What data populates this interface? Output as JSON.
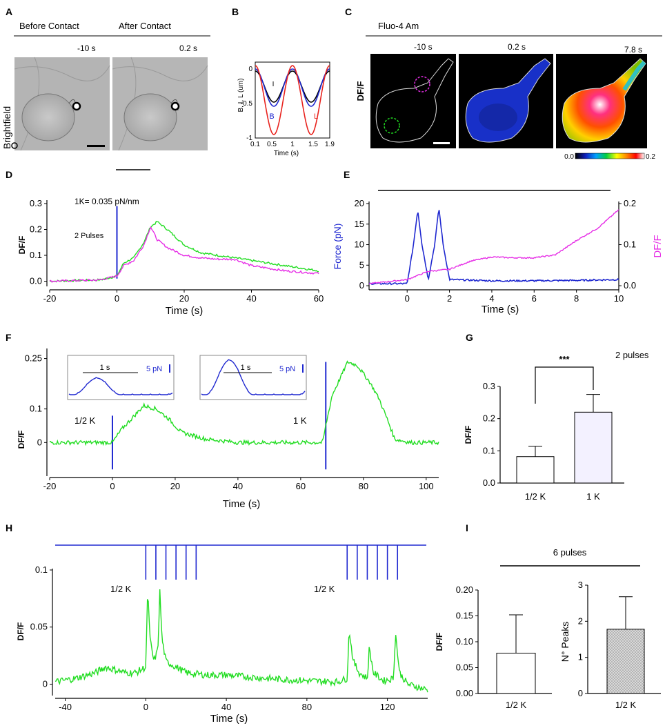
{
  "panels": {
    "A": {
      "label": "A",
      "header_before": "Before Contact",
      "header_after": "After Contact",
      "time_before": "-10 s",
      "time_after": "0.2 s",
      "row_label": "Brightfield"
    },
    "B": {
      "label": "B",
      "ylabel": "B, I, L (um)",
      "xlabel": "Time (s)"
    },
    "C": {
      "label": "C",
      "dye": "Fluo-4 Am",
      "row_label": "DF/F",
      "times": [
        "-10 s",
        "0.2 s",
        "7.8 s"
      ],
      "cbar_min": "0.0",
      "cbar_max": "0.2"
    },
    "D": {
      "label": "D",
      "annotation": "1K= 0.035 pN/nm",
      "pulses": "2 Pulses"
    },
    "E": {
      "label": "E"
    },
    "F": {
      "label": "F",
      "inset_scale_time": "1 s",
      "inset_scale_force": "5 pN",
      "label_half": "1/2 K",
      "label_one": "1 K"
    },
    "G": {
      "label": "G",
      "title": "2 pulses",
      "significance": "***"
    },
    "H": {
      "label": "H",
      "label_left": "1/2 K",
      "label_right": "1/2 K"
    },
    "I": {
      "label": "I",
      "title": "6 pulses"
    }
  },
  "chart_data": [
    {
      "id": "B",
      "type": "line",
      "xlabel": "Time (s)",
      "ylabel": "B, I, L (um)",
      "xlim": [
        0.1,
        1.9
      ],
      "ylim": [
        -1,
        0.1
      ],
      "xticks": [
        "0.1",
        "0.5",
        "1",
        "1.5",
        "1.9"
      ],
      "yticks": [
        "0",
        "-0.5",
        "-1"
      ],
      "series": [
        {
          "name": "I",
          "color": "#000000",
          "amplitude": 0.45,
          "offset": -0.03
        },
        {
          "name": "B",
          "color": "#1f28d0",
          "amplitude": 0.54,
          "offset": 0.0
        },
        {
          "name": "L",
          "color": "#e8231e",
          "amplitude": 1.0,
          "offset": 0.05
        }
      ]
    },
    {
      "id": "D",
      "type": "line",
      "xlabel": "Time (s)",
      "ylabel": "DF/F",
      "xlim": [
        -20,
        60
      ],
      "ylim": [
        -0.02,
        0.3
      ],
      "xticks": [
        "-20",
        "0",
        "20",
        "40",
        "60"
      ],
      "yticks": [
        "0.0",
        "0.1",
        "0.2",
        "0.3"
      ],
      "series": [
        {
          "name": "",
          "color": "#22dd22",
          "x": [
            -20,
            -5,
            0,
            2,
            5,
            8,
            10,
            12,
            15,
            20,
            25,
            30,
            35,
            40,
            50,
            60
          ],
          "y": [
            0.0,
            0.005,
            0.02,
            0.07,
            0.09,
            0.15,
            0.21,
            0.23,
            0.2,
            0.14,
            0.11,
            0.1,
            0.09,
            0.08,
            0.06,
            0.04
          ]
        },
        {
          "name": "",
          "color": "#e62ee6",
          "x": [
            -20,
            -5,
            0,
            2,
            5,
            8,
            10,
            12,
            15,
            20,
            25,
            30,
            35,
            40,
            50,
            60
          ],
          "y": [
            0.0,
            0.005,
            0.02,
            0.06,
            0.08,
            0.14,
            0.21,
            0.16,
            0.13,
            0.1,
            0.09,
            0.085,
            0.085,
            0.06,
            0.04,
            0.03
          ]
        }
      ]
    },
    {
      "id": "E",
      "type": "line",
      "xlabel": "Time (s)",
      "ylabel_left": "Force (pN)",
      "ylabel_right": "DF/F",
      "xlim": [
        -1.8,
        10
      ],
      "ylim_left": [
        -1,
        20
      ],
      "ylim_right": [
        -0.01,
        0.2
      ],
      "xticks": [
        "0",
        "2",
        "4",
        "6",
        "8",
        "10"
      ],
      "yticks_left": [
        "0",
        "5",
        "10",
        "15",
        "20"
      ],
      "yticks_right": [
        "0.0",
        "0.1",
        "0.2"
      ],
      "series": [
        {
          "name": "Force (pN)",
          "color": "#1f28d0",
          "x": [
            -1.8,
            0,
            0.3,
            0.5,
            0.7,
            1.0,
            1.3,
            1.5,
            1.7,
            2.0,
            4,
            6,
            8,
            10
          ],
          "y": [
            0.5,
            0.5,
            10,
            18.5,
            10,
            1.5,
            10,
            19,
            10,
            1.5,
            1.2,
            1.2,
            1.3,
            1.5
          ]
        },
        {
          "name": "DF/F",
          "color": "#e62ee6",
          "x": [
            -1.8,
            0,
            1,
            2,
            3,
            4,
            5,
            6,
            7,
            8,
            9,
            10
          ],
          "y": [
            0.005,
            0.015,
            0.035,
            0.04,
            0.06,
            0.07,
            0.068,
            0.068,
            0.075,
            0.11,
            0.14,
            0.185
          ]
        }
      ]
    },
    {
      "id": "F",
      "type": "line",
      "xlabel": "Time (s)",
      "ylabel": "DF/F",
      "xlim": [
        -20,
        104
      ],
      "ylim": [
        -0.1,
        0.28
      ],
      "xticks": [
        "-20",
        "0",
        "20",
        "40",
        "60",
        "80",
        "100"
      ],
      "yticks": [
        "0",
        "0.1",
        "0.25"
      ],
      "series": [
        {
          "name": "",
          "color": "#22dd22",
          "x": [
            -20,
            0,
            3,
            6,
            10,
            14,
            18,
            22,
            30,
            40,
            50,
            60,
            67,
            68,
            70,
            73,
            75,
            78,
            82,
            85,
            88,
            90,
            95,
            104
          ],
          "y": [
            0.0,
            0.0,
            0.04,
            0.07,
            0.11,
            0.1,
            0.07,
            0.03,
            0.01,
            0.0,
            0.0,
            0.0,
            0.0,
            0.05,
            0.14,
            0.2,
            0.24,
            0.23,
            0.18,
            0.13,
            0.06,
            0.01,
            0.0,
            0.0
          ]
        }
      ]
    },
    {
      "id": "G",
      "type": "bar",
      "ylabel": "DF/F",
      "categories": [
        "1/2 K",
        "1 K"
      ],
      "values": [
        0.082,
        0.22
      ],
      "errors": [
        0.032,
        0.055
      ],
      "ylim": [
        0,
        0.3
      ],
      "yticks": [
        "0.0",
        "0.1",
        "0.2",
        "0.3"
      ]
    },
    {
      "id": "H",
      "type": "line",
      "xlabel": "Time (s)",
      "ylabel": "DF/F",
      "xlim": [
        -45,
        140
      ],
      "ylim": [
        -0.01,
        0.1
      ],
      "xticks": [
        "-40",
        "0",
        "40",
        "80",
        "120"
      ],
      "yticks": [
        "0",
        "0.05",
        "0.1"
      ],
      "stimulus_times": [
        0,
        5,
        10,
        15,
        20,
        25,
        100,
        105,
        110,
        115,
        120,
        125
      ],
      "series": [
        {
          "name": "",
          "color": "#22dd22",
          "x": [
            -45,
            -35,
            -25,
            -20,
            -10,
            -5,
            0,
            1,
            2,
            4,
            6,
            7,
            8,
            10,
            15,
            20,
            30,
            40,
            60,
            80,
            95,
            100,
            101,
            103,
            106,
            110,
            111,
            113,
            118,
            123,
            124,
            126,
            130,
            140
          ],
          "y": [
            0.002,
            0.005,
            0.01,
            0.015,
            0.01,
            0.01,
            0.015,
            0.085,
            0.04,
            0.02,
            0.03,
            0.082,
            0.04,
            0.02,
            0.015,
            0.01,
            0.008,
            0.008,
            0.005,
            0.003,
            0.002,
            0.005,
            0.048,
            0.02,
            0.01,
            0.005,
            0.032,
            0.01,
            0.003,
            0.005,
            0.045,
            0.01,
            0.0,
            -0.005
          ]
        }
      ]
    },
    {
      "id": "I1",
      "type": "bar",
      "ylabel": "DF/F",
      "categories": [
        "1/2 K"
      ],
      "values": [
        0.078
      ],
      "errors": [
        0.074
      ],
      "ylim": [
        0,
        0.2
      ],
      "yticks": [
        "0.00",
        "0.05",
        "0.10",
        "0.15",
        "0.20"
      ]
    },
    {
      "id": "I2",
      "type": "bar",
      "ylabel": "N° Peaks",
      "categories": [
        "1/2 K"
      ],
      "values": [
        1.78
      ],
      "errors": [
        0.9
      ],
      "ylim": [
        0,
        3
      ],
      "yticks": [
        "0",
        "1",
        "2",
        "3"
      ]
    }
  ]
}
